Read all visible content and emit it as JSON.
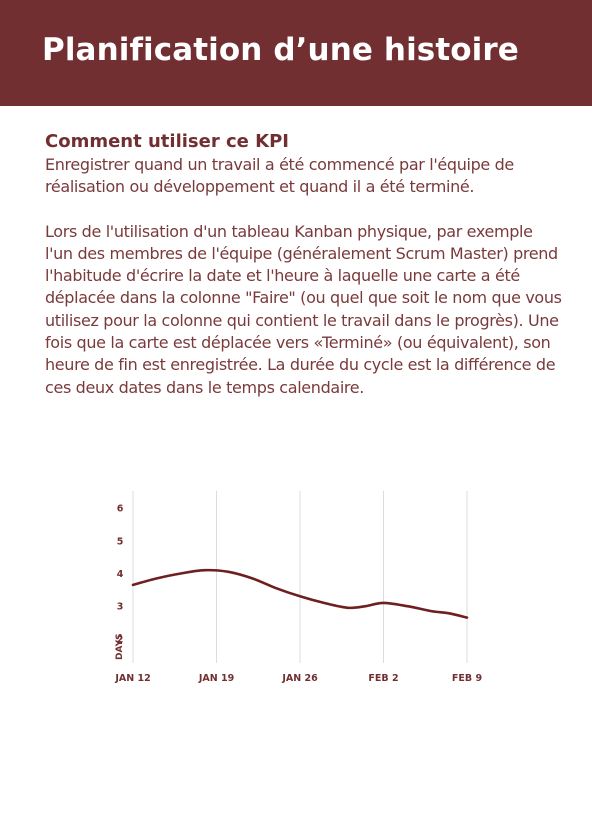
{
  "header": {
    "title": "Planification d’une histoire",
    "background_color": "#722f31"
  },
  "kpi": {
    "heading": "Comment utiliser ce KPI",
    "paragraphs": [
      "Enregistrer quand un travail a été commencé par l'équipe de réalisation ou développement et quand il a été terminé.",
      "Lors de l'utilisation d'un tableau Kanban physique, par exemple l'un des membres de l'équipe (généralement Scrum Master) prend l'habitude d'écrire la date et l'heure à laquelle une carte a été déplacée dans la colonne \"Faire\" (ou quel que soit le nom que vous utilisez pour la colonne qui contient le travail dans le progrès). Une fois que la carte est déplacée vers «Terminé» (ou équivalent), son heure de fin est enregistrée. La durée du cycle est la différence de ces deux dates dans le temps calendaire."
    ]
  },
  "chart_data": {
    "type": "line",
    "ylabel": "DAYS",
    "yticks": [
      "2",
      "3",
      "4",
      "5",
      "6"
    ],
    "ylim": [
      1.2,
      6.4
    ],
    "xticks": [
      "JAN 12",
      "JAN 19",
      "JAN 26",
      "FEB 2",
      "FEB 9"
    ],
    "xlim": [
      0,
      28
    ],
    "grid": "vertical",
    "line_color": "#6e1f1f",
    "series": [
      {
        "x": [
          0,
          2,
          4,
          6,
          8,
          10,
          12,
          14,
          16,
          18,
          19.5,
          21,
          23,
          25,
          26.5,
          28
        ],
        "values": [
          3.65,
          3.85,
          4.0,
          4.1,
          4.05,
          3.85,
          3.55,
          3.3,
          3.1,
          2.95,
          3.0,
          3.1,
          3.0,
          2.85,
          2.78,
          2.65
        ]
      }
    ]
  }
}
